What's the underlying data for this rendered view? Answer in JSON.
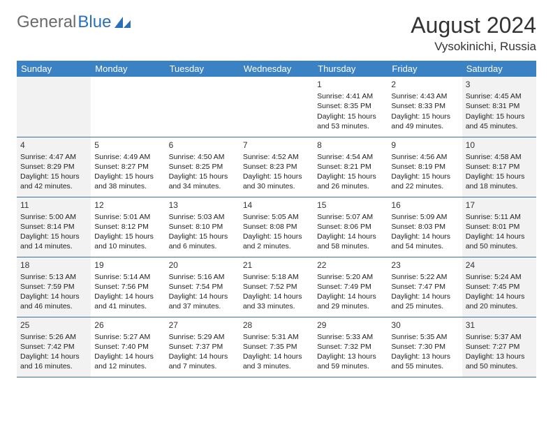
{
  "logo": {
    "text1": "General",
    "text2": "Blue"
  },
  "title": "August 2024",
  "location": "Vysokinichi, Russia",
  "colors": {
    "header_bg": "#3b82c4",
    "header_fg": "#ffffff",
    "weekend_bg": "#f2f2f2",
    "border": "#3b6fa0",
    "logo_gray": "#6a6a6a",
    "logo_blue": "#2a70b8"
  },
  "day_headers": [
    "Sunday",
    "Monday",
    "Tuesday",
    "Wednesday",
    "Thursday",
    "Friday",
    "Saturday"
  ],
  "weeks": [
    [
      null,
      null,
      null,
      null,
      {
        "n": "1",
        "sr": "4:41 AM",
        "ss": "8:35 PM",
        "dl": "15 hours and 53 minutes."
      },
      {
        "n": "2",
        "sr": "4:43 AM",
        "ss": "8:33 PM",
        "dl": "15 hours and 49 minutes."
      },
      {
        "n": "3",
        "sr": "4:45 AM",
        "ss": "8:31 PM",
        "dl": "15 hours and 45 minutes."
      }
    ],
    [
      {
        "n": "4",
        "sr": "4:47 AM",
        "ss": "8:29 PM",
        "dl": "15 hours and 42 minutes."
      },
      {
        "n": "5",
        "sr": "4:49 AM",
        "ss": "8:27 PM",
        "dl": "15 hours and 38 minutes."
      },
      {
        "n": "6",
        "sr": "4:50 AM",
        "ss": "8:25 PM",
        "dl": "15 hours and 34 minutes."
      },
      {
        "n": "7",
        "sr": "4:52 AM",
        "ss": "8:23 PM",
        "dl": "15 hours and 30 minutes."
      },
      {
        "n": "8",
        "sr": "4:54 AM",
        "ss": "8:21 PM",
        "dl": "15 hours and 26 minutes."
      },
      {
        "n": "9",
        "sr": "4:56 AM",
        "ss": "8:19 PM",
        "dl": "15 hours and 22 minutes."
      },
      {
        "n": "10",
        "sr": "4:58 AM",
        "ss": "8:17 PM",
        "dl": "15 hours and 18 minutes."
      }
    ],
    [
      {
        "n": "11",
        "sr": "5:00 AM",
        "ss": "8:14 PM",
        "dl": "15 hours and 14 minutes."
      },
      {
        "n": "12",
        "sr": "5:01 AM",
        "ss": "8:12 PM",
        "dl": "15 hours and 10 minutes."
      },
      {
        "n": "13",
        "sr": "5:03 AM",
        "ss": "8:10 PM",
        "dl": "15 hours and 6 minutes."
      },
      {
        "n": "14",
        "sr": "5:05 AM",
        "ss": "8:08 PM",
        "dl": "15 hours and 2 minutes."
      },
      {
        "n": "15",
        "sr": "5:07 AM",
        "ss": "8:06 PM",
        "dl": "14 hours and 58 minutes."
      },
      {
        "n": "16",
        "sr": "5:09 AM",
        "ss": "8:03 PM",
        "dl": "14 hours and 54 minutes."
      },
      {
        "n": "17",
        "sr": "5:11 AM",
        "ss": "8:01 PM",
        "dl": "14 hours and 50 minutes."
      }
    ],
    [
      {
        "n": "18",
        "sr": "5:13 AM",
        "ss": "7:59 PM",
        "dl": "14 hours and 46 minutes."
      },
      {
        "n": "19",
        "sr": "5:14 AM",
        "ss": "7:56 PM",
        "dl": "14 hours and 41 minutes."
      },
      {
        "n": "20",
        "sr": "5:16 AM",
        "ss": "7:54 PM",
        "dl": "14 hours and 37 minutes."
      },
      {
        "n": "21",
        "sr": "5:18 AM",
        "ss": "7:52 PM",
        "dl": "14 hours and 33 minutes."
      },
      {
        "n": "22",
        "sr": "5:20 AM",
        "ss": "7:49 PM",
        "dl": "14 hours and 29 minutes."
      },
      {
        "n": "23",
        "sr": "5:22 AM",
        "ss": "7:47 PM",
        "dl": "14 hours and 25 minutes."
      },
      {
        "n": "24",
        "sr": "5:24 AM",
        "ss": "7:45 PM",
        "dl": "14 hours and 20 minutes."
      }
    ],
    [
      {
        "n": "25",
        "sr": "5:26 AM",
        "ss": "7:42 PM",
        "dl": "14 hours and 16 minutes."
      },
      {
        "n": "26",
        "sr": "5:27 AM",
        "ss": "7:40 PM",
        "dl": "14 hours and 12 minutes."
      },
      {
        "n": "27",
        "sr": "5:29 AM",
        "ss": "7:37 PM",
        "dl": "14 hours and 7 minutes."
      },
      {
        "n": "28",
        "sr": "5:31 AM",
        "ss": "7:35 PM",
        "dl": "14 hours and 3 minutes."
      },
      {
        "n": "29",
        "sr": "5:33 AM",
        "ss": "7:32 PM",
        "dl": "13 hours and 59 minutes."
      },
      {
        "n": "30",
        "sr": "5:35 AM",
        "ss": "7:30 PM",
        "dl": "13 hours and 55 minutes."
      },
      {
        "n": "31",
        "sr": "5:37 AM",
        "ss": "7:27 PM",
        "dl": "13 hours and 50 minutes."
      }
    ]
  ],
  "labels": {
    "sunrise": "Sunrise:",
    "sunset": "Sunset:",
    "daylight": "Daylight:"
  }
}
